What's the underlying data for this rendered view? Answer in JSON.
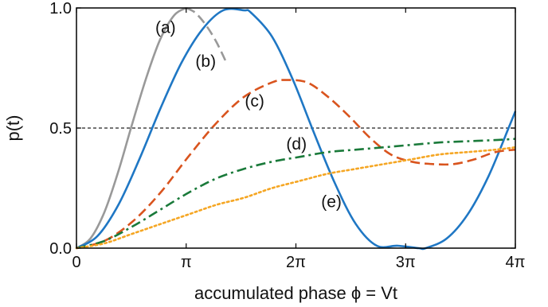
{
  "chart_data": {
    "type": "line",
    "xlabel": "accumulated phase ϕ = Vt",
    "ylabel": "p(t)",
    "xlim": [
      0,
      12.566
    ],
    "ylim": [
      0,
      1
    ],
    "x_ticks": [
      {
        "value": 0,
        "label": "0"
      },
      {
        "value": 3.1416,
        "label": "π"
      },
      {
        "value": 6.2832,
        "label": "2π"
      },
      {
        "value": 9.4248,
        "label": "3π"
      },
      {
        "value": 12.566,
        "label": "4π"
      }
    ],
    "y_ticks": [
      {
        "value": 0,
        "label": "0.0"
      },
      {
        "value": 0.5,
        "label": "0.5"
      },
      {
        "value": 1,
        "label": "1.0"
      }
    ],
    "reference_line": {
      "y": 0.5,
      "style": "dashed",
      "color": "#222222"
    },
    "series": [
      {
        "name": "(a)",
        "color": "#999999",
        "style": "solid",
        "x": [
          0,
          0.4,
          0.8,
          1.2,
          1.6,
          2.0,
          2.4,
          2.8,
          3.1416
        ],
        "y": [
          0,
          0.04,
          0.15,
          0.32,
          0.52,
          0.71,
          0.87,
          0.97,
          1.0
        ]
      },
      {
        "name": "(a)-continuation",
        "color": "#999999",
        "style": "dashed",
        "x": [
          3.1416,
          3.4,
          3.7,
          4.0,
          4.3
        ],
        "y": [
          1.0,
          0.98,
          0.93,
          0.86,
          0.77
        ]
      },
      {
        "name": "(b)",
        "color": "#1f77c4",
        "style": "solid",
        "x": [
          0,
          0.6,
          1.2,
          1.8,
          2.4,
          3.0,
          3.6,
          4.2,
          4.8,
          5.0,
          5.6,
          6.2,
          6.8,
          7.4,
          8.0,
          8.6,
          9.2,
          9.8,
          10.0,
          10.6,
          11.2,
          11.8,
          12.4,
          12.566
        ],
        "y": [
          0,
          0.05,
          0.18,
          0.37,
          0.58,
          0.77,
          0.91,
          0.99,
          0.99,
          0.98,
          0.88,
          0.7,
          0.48,
          0.27,
          0.1,
          0.01,
          0.01,
          0.0,
          0.0,
          0.04,
          0.14,
          0.3,
          0.51,
          0.57
        ]
      },
      {
        "name": "(c)",
        "color": "#d9541e",
        "style": "dashed",
        "x": [
          0,
          0.8,
          1.6,
          2.4,
          3.2,
          4.0,
          4.8,
          5.6,
          6.0,
          6.6,
          7.2,
          7.8,
          8.4,
          9.0,
          9.6,
          10.2,
          10.8,
          11.4,
          12.0,
          12.566
        ],
        "y": [
          0,
          0.03,
          0.11,
          0.23,
          0.38,
          0.52,
          0.63,
          0.69,
          0.7,
          0.69,
          0.63,
          0.55,
          0.46,
          0.39,
          0.36,
          0.35,
          0.35,
          0.37,
          0.4,
          0.41
        ]
      },
      {
        "name": "(d)",
        "color": "#1a7a3a",
        "style": "dashdot",
        "x": [
          0,
          0.8,
          1.6,
          2.4,
          3.2,
          4.0,
          4.8,
          5.6,
          6.4,
          7.2,
          8.0,
          8.8,
          9.6,
          10.4,
          11.2,
          12.0,
          12.566
        ],
        "y": [
          0,
          0.03,
          0.09,
          0.16,
          0.23,
          0.29,
          0.33,
          0.36,
          0.38,
          0.4,
          0.41,
          0.42,
          0.43,
          0.44,
          0.445,
          0.45,
          0.455
        ]
      },
      {
        "name": "(e)",
        "color": "#f5a623",
        "style": "dotted",
        "x": [
          0,
          0.8,
          1.6,
          2.4,
          3.2,
          4.0,
          4.8,
          5.6,
          6.4,
          7.2,
          8.0,
          8.8,
          9.6,
          10.4,
          11.2,
          12.0,
          12.566
        ],
        "y": [
          0,
          0.02,
          0.06,
          0.1,
          0.14,
          0.18,
          0.21,
          0.25,
          0.28,
          0.31,
          0.33,
          0.35,
          0.37,
          0.39,
          0.4,
          0.41,
          0.42
        ]
      }
    ],
    "labels": [
      {
        "text": "(a)",
        "x": 2.55,
        "y": 0.895
      },
      {
        "text": "(b)",
        "x": 3.7,
        "y": 0.755
      },
      {
        "text": "(c)",
        "x": 5.1,
        "y": 0.59
      },
      {
        "text": "(d)",
        "x": 6.3,
        "y": 0.41
      },
      {
        "text": "(e)",
        "x": 7.3,
        "y": 0.17
      }
    ]
  }
}
